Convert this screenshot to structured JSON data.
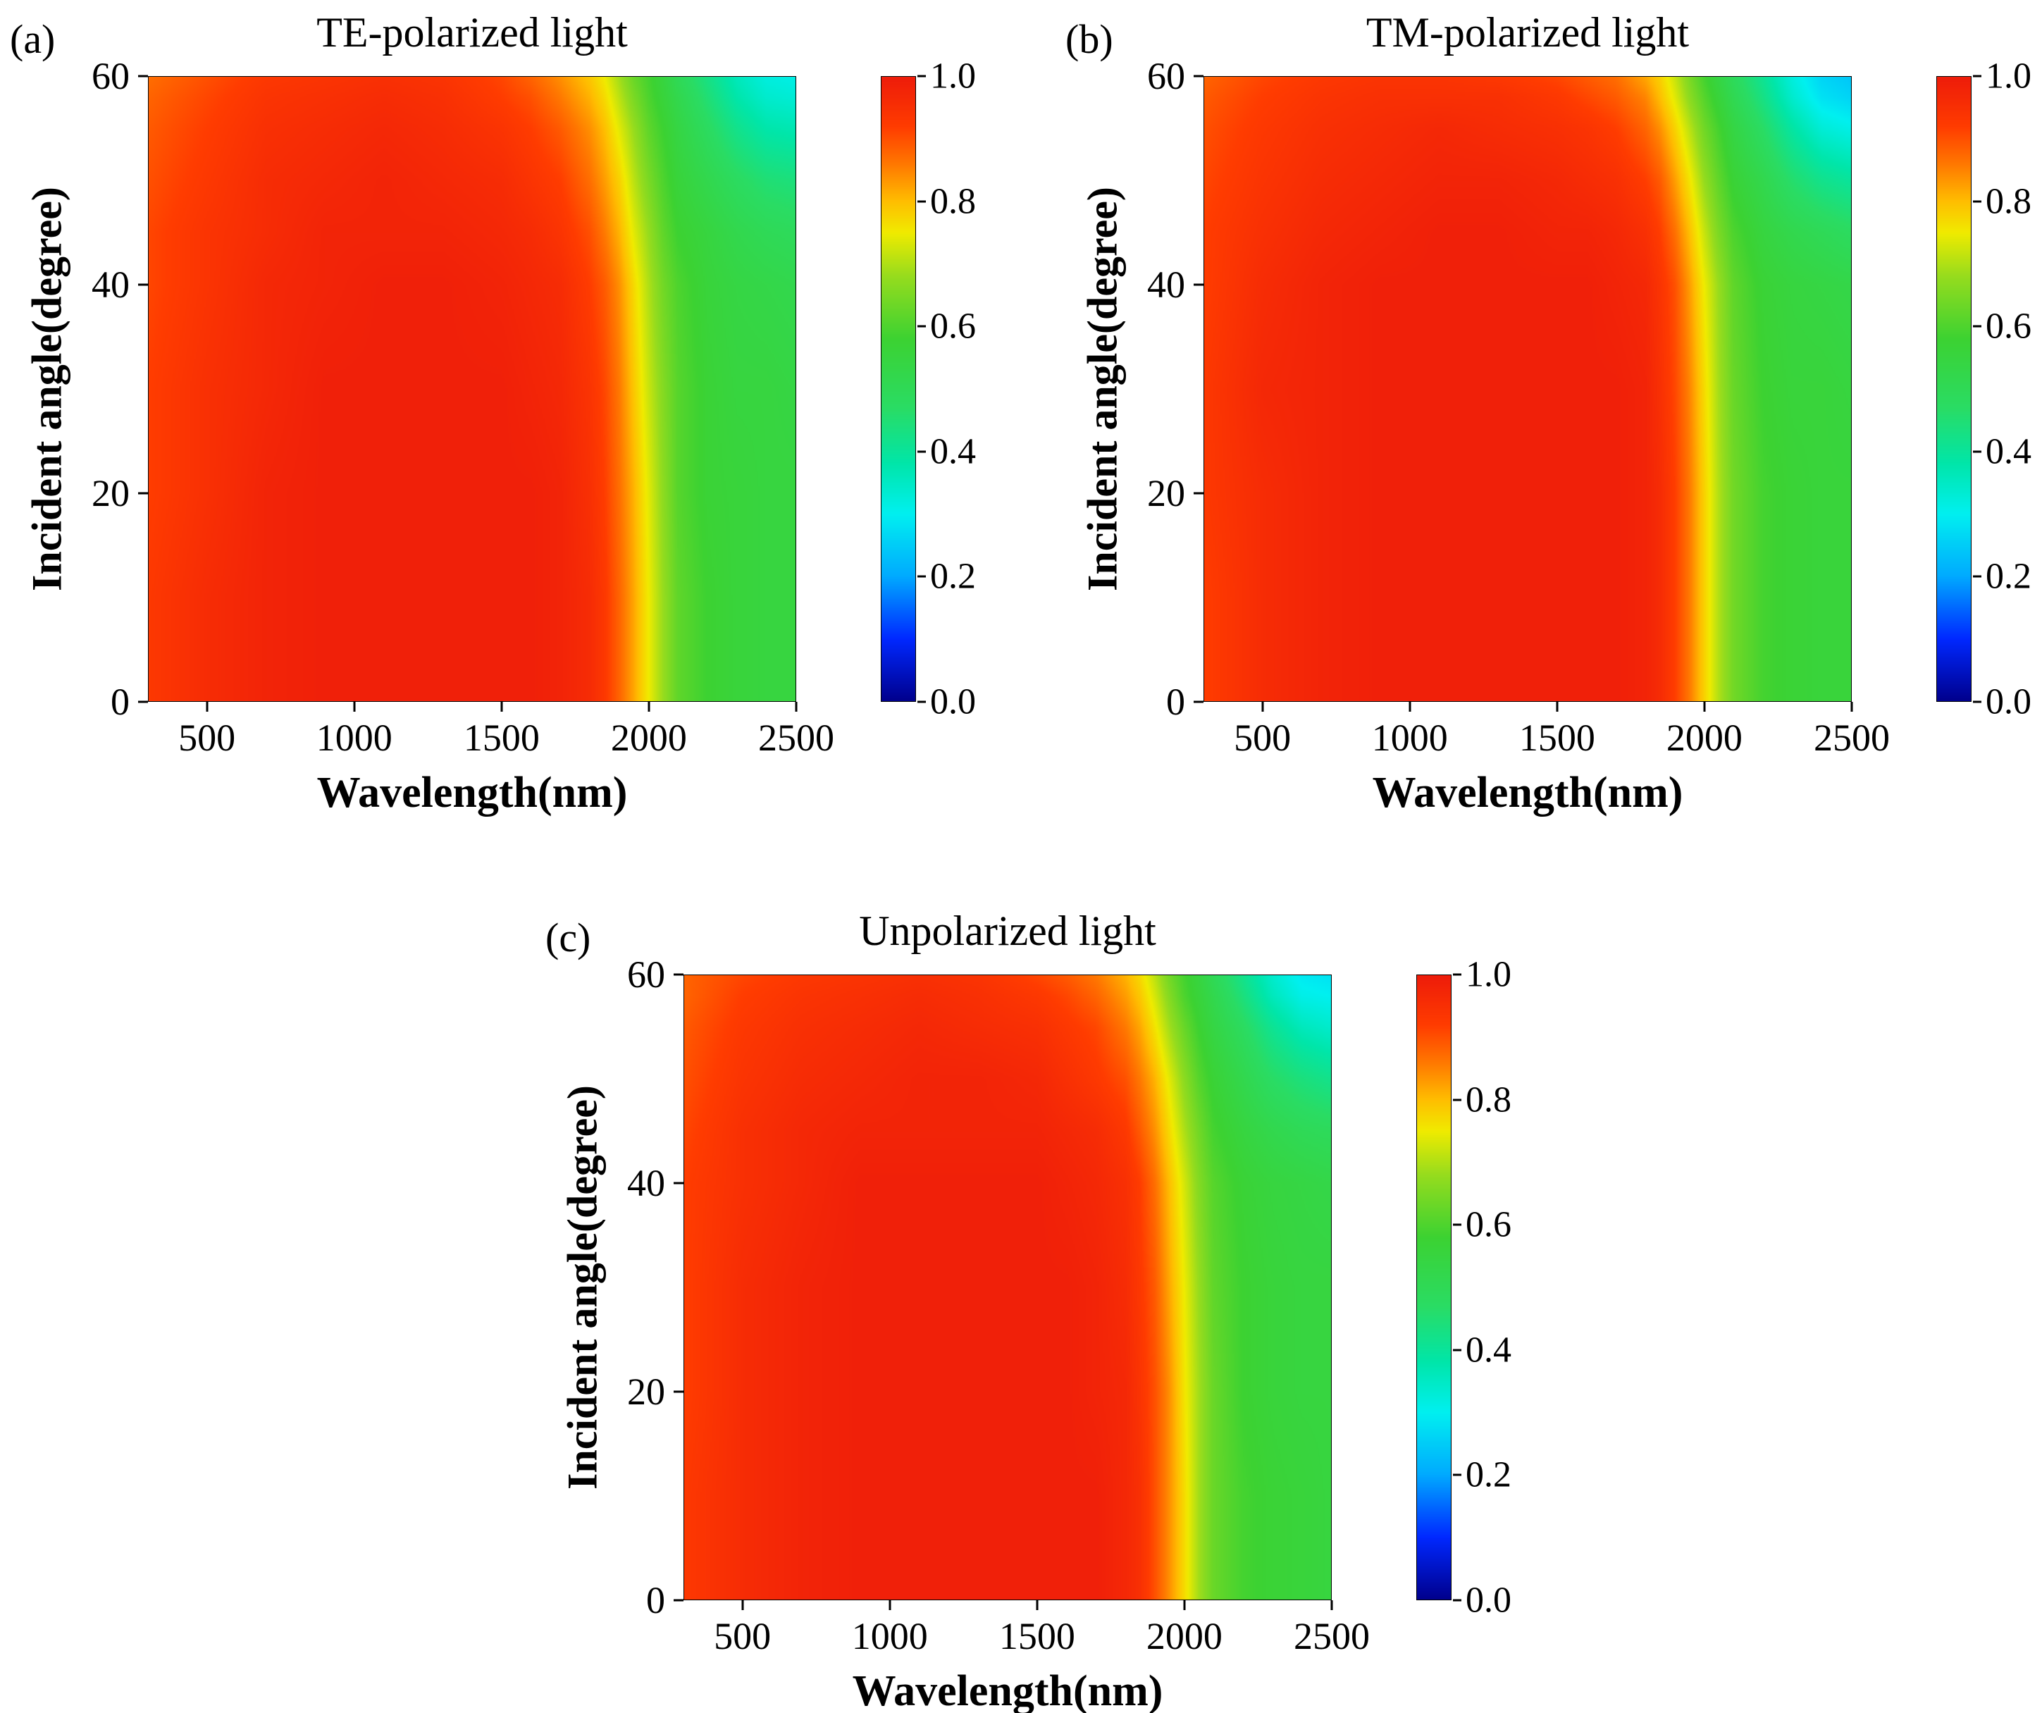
{
  "figure_background": "#ffffff",
  "colormap": {
    "name": "jet",
    "stops": [
      [
        0.0,
        "#00008C"
      ],
      [
        0.1,
        "#0028FF"
      ],
      [
        0.2,
        "#00AAFF"
      ],
      [
        0.3,
        "#00F0F0"
      ],
      [
        0.38,
        "#00E6AA"
      ],
      [
        0.47,
        "#2ADC64"
      ],
      [
        0.58,
        "#3CD232"
      ],
      [
        0.68,
        "#96DC1E"
      ],
      [
        0.75,
        "#F0EB00"
      ],
      [
        0.8,
        "#FFBE00"
      ],
      [
        0.86,
        "#FF7800"
      ],
      [
        0.92,
        "#FF3C00"
      ],
      [
        1.0,
        "#EE1C0A"
      ]
    ]
  },
  "chart_data": [
    {
      "type": "heatmap",
      "tag": "(a)",
      "title": "TE-polarized light",
      "xlabel": "Wavelength(nm)",
      "ylabel": "Incident angle(degree)",
      "xlim": [
        300,
        2500
      ],
      "ylim": [
        0,
        60
      ],
      "zlim": [
        0,
        1
      ],
      "x_ticks": [
        500,
        1000,
        1500,
        2000,
        2500
      ],
      "y_ticks": [
        0,
        20,
        40,
        60
      ],
      "colorbar_ticks": [
        "0.0",
        "0.2",
        "0.4",
        "0.6",
        "0.8",
        "1.0"
      ],
      "x": [
        300,
        500,
        700,
        900,
        1100,
        1300,
        1500,
        1600,
        1700,
        1800,
        1850,
        1900,
        1950,
        2000,
        2050,
        2100,
        2200,
        2300,
        2400,
        2500
      ],
      "y": [
        0,
        10,
        20,
        30,
        40,
        45,
        50,
        55,
        58,
        60
      ],
      "values": [
        [
          0.93,
          0.96,
          0.98,
          0.99,
          0.99,
          0.99,
          0.99,
          0.99,
          0.98,
          0.96,
          0.93,
          0.88,
          0.82,
          0.75,
          0.68,
          0.62,
          0.58,
          0.56,
          0.55,
          0.55
        ],
        [
          0.93,
          0.96,
          0.98,
          0.99,
          0.99,
          0.99,
          0.99,
          0.99,
          0.98,
          0.96,
          0.93,
          0.88,
          0.82,
          0.75,
          0.68,
          0.62,
          0.58,
          0.56,
          0.55,
          0.55
        ],
        [
          0.92,
          0.95,
          0.98,
          0.99,
          0.99,
          0.99,
          0.99,
          0.99,
          0.98,
          0.95,
          0.92,
          0.87,
          0.81,
          0.74,
          0.67,
          0.61,
          0.57,
          0.56,
          0.55,
          0.55
        ],
        [
          0.92,
          0.95,
          0.97,
          0.99,
          0.99,
          0.99,
          0.99,
          0.98,
          0.97,
          0.94,
          0.91,
          0.86,
          0.79,
          0.72,
          0.66,
          0.61,
          0.57,
          0.55,
          0.55,
          0.54
        ],
        [
          0.91,
          0.94,
          0.97,
          0.98,
          0.99,
          0.99,
          0.98,
          0.97,
          0.96,
          0.92,
          0.89,
          0.84,
          0.77,
          0.7,
          0.64,
          0.6,
          0.56,
          0.54,
          0.53,
          0.52
        ],
        [
          0.91,
          0.94,
          0.96,
          0.98,
          0.98,
          0.98,
          0.97,
          0.96,
          0.94,
          0.9,
          0.86,
          0.81,
          0.74,
          0.68,
          0.62,
          0.58,
          0.55,
          0.52,
          0.5,
          0.49
        ],
        [
          0.9,
          0.93,
          0.96,
          0.97,
          0.98,
          0.97,
          0.96,
          0.94,
          0.92,
          0.87,
          0.83,
          0.78,
          0.71,
          0.65,
          0.6,
          0.56,
          0.52,
          0.48,
          0.45,
          0.44
        ],
        [
          0.89,
          0.92,
          0.95,
          0.96,
          0.97,
          0.96,
          0.94,
          0.92,
          0.89,
          0.84,
          0.8,
          0.74,
          0.68,
          0.62,
          0.58,
          0.54,
          0.48,
          0.42,
          0.38,
          0.37
        ],
        [
          0.88,
          0.91,
          0.94,
          0.95,
          0.96,
          0.95,
          0.92,
          0.9,
          0.86,
          0.81,
          0.77,
          0.71,
          0.65,
          0.6,
          0.56,
          0.52,
          0.45,
          0.38,
          0.34,
          0.33
        ],
        [
          0.87,
          0.9,
          0.93,
          0.94,
          0.95,
          0.94,
          0.91,
          0.88,
          0.84,
          0.79,
          0.75,
          0.69,
          0.63,
          0.59,
          0.55,
          0.5,
          0.43,
          0.36,
          0.32,
          0.31
        ]
      ]
    },
    {
      "type": "heatmap",
      "tag": "(b)",
      "title": "TM-polarized light",
      "xlabel": "Wavelength(nm)",
      "ylabel": "Incident angle(degree)",
      "xlim": [
        300,
        2500
      ],
      "ylim": [
        0,
        60
      ],
      "zlim": [
        0,
        1
      ],
      "x_ticks": [
        500,
        1000,
        1500,
        2000,
        2500
      ],
      "y_ticks": [
        0,
        20,
        40,
        60
      ],
      "colorbar_ticks": [
        "0.0",
        "0.2",
        "0.4",
        "0.6",
        "0.8",
        "1.0"
      ],
      "x": [
        300,
        500,
        700,
        900,
        1100,
        1300,
        1500,
        1600,
        1700,
        1800,
        1850,
        1900,
        1950,
        2000,
        2050,
        2100,
        2200,
        2300,
        2400,
        2500
      ],
      "y": [
        0,
        10,
        20,
        30,
        40,
        45,
        50,
        55,
        58,
        60
      ],
      "values": [
        [
          0.92,
          0.96,
          0.98,
          0.99,
          0.99,
          0.99,
          0.99,
          0.99,
          0.99,
          0.98,
          0.96,
          0.92,
          0.86,
          0.78,
          0.7,
          0.64,
          0.59,
          0.57,
          0.56,
          0.56
        ],
        [
          0.92,
          0.96,
          0.98,
          0.99,
          0.99,
          0.99,
          0.99,
          0.99,
          0.99,
          0.98,
          0.96,
          0.92,
          0.86,
          0.78,
          0.7,
          0.64,
          0.59,
          0.57,
          0.56,
          0.56
        ],
        [
          0.93,
          0.96,
          0.98,
          0.99,
          0.99,
          0.99,
          0.99,
          0.99,
          0.99,
          0.98,
          0.96,
          0.92,
          0.86,
          0.78,
          0.7,
          0.64,
          0.59,
          0.57,
          0.56,
          0.56
        ],
        [
          0.93,
          0.97,
          0.98,
          0.99,
          0.99,
          0.99,
          0.99,
          0.99,
          0.99,
          0.98,
          0.95,
          0.91,
          0.85,
          0.77,
          0.69,
          0.63,
          0.58,
          0.56,
          0.56,
          0.55
        ],
        [
          0.92,
          0.96,
          0.98,
          0.99,
          0.99,
          0.99,
          0.99,
          0.99,
          0.98,
          0.97,
          0.94,
          0.9,
          0.83,
          0.75,
          0.68,
          0.62,
          0.57,
          0.55,
          0.54,
          0.53
        ],
        [
          0.92,
          0.95,
          0.97,
          0.98,
          0.99,
          0.99,
          0.98,
          0.98,
          0.97,
          0.95,
          0.92,
          0.87,
          0.8,
          0.72,
          0.65,
          0.6,
          0.55,
          0.52,
          0.5,
          0.48
        ],
        [
          0.91,
          0.94,
          0.96,
          0.97,
          0.98,
          0.98,
          0.97,
          0.96,
          0.95,
          0.92,
          0.89,
          0.83,
          0.76,
          0.68,
          0.62,
          0.57,
          0.52,
          0.46,
          0.42,
          0.4
        ],
        [
          0.9,
          0.93,
          0.95,
          0.96,
          0.97,
          0.96,
          0.95,
          0.94,
          0.92,
          0.88,
          0.84,
          0.78,
          0.71,
          0.64,
          0.59,
          0.54,
          0.47,
          0.39,
          0.33,
          0.31
        ],
        [
          0.89,
          0.92,
          0.94,
          0.95,
          0.95,
          0.95,
          0.93,
          0.91,
          0.89,
          0.85,
          0.8,
          0.74,
          0.67,
          0.61,
          0.56,
          0.51,
          0.43,
          0.34,
          0.28,
          0.26
        ],
        [
          0.88,
          0.91,
          0.93,
          0.94,
          0.94,
          0.93,
          0.91,
          0.89,
          0.87,
          0.82,
          0.78,
          0.72,
          0.65,
          0.59,
          0.54,
          0.49,
          0.41,
          0.32,
          0.26,
          0.24
        ]
      ]
    },
    {
      "type": "heatmap",
      "tag": "(c)",
      "title": "Unpolarized light",
      "xlabel": "Wavelength(nm)",
      "ylabel": "Incident angle(degree)",
      "xlim": [
        300,
        2500
      ],
      "ylim": [
        0,
        60
      ],
      "zlim": [
        0,
        1
      ],
      "x_ticks": [
        500,
        1000,
        1500,
        2000,
        2500
      ],
      "y_ticks": [
        0,
        20,
        40,
        60
      ],
      "colorbar_ticks": [
        "0.0",
        "0.2",
        "0.4",
        "0.6",
        "0.8",
        "1.0"
      ],
      "x": [
        300,
        500,
        700,
        900,
        1100,
        1300,
        1500,
        1600,
        1700,
        1800,
        1850,
        1900,
        1950,
        2000,
        2050,
        2100,
        2200,
        2300,
        2400,
        2500
      ],
      "y": [
        0,
        10,
        20,
        30,
        40,
        45,
        50,
        55,
        58,
        60
      ],
      "values": [
        [
          0.93,
          0.96,
          0.98,
          0.99,
          0.99,
          0.99,
          0.99,
          0.99,
          0.99,
          0.97,
          0.95,
          0.9,
          0.84,
          0.77,
          0.69,
          0.63,
          0.59,
          0.57,
          0.56,
          0.55
        ],
        [
          0.93,
          0.96,
          0.98,
          0.99,
          0.99,
          0.99,
          0.99,
          0.99,
          0.99,
          0.97,
          0.95,
          0.9,
          0.84,
          0.77,
          0.69,
          0.63,
          0.59,
          0.57,
          0.56,
          0.55
        ],
        [
          0.92,
          0.96,
          0.98,
          0.99,
          0.99,
          0.99,
          0.99,
          0.99,
          0.98,
          0.97,
          0.94,
          0.9,
          0.84,
          0.76,
          0.69,
          0.63,
          0.58,
          0.56,
          0.55,
          0.55
        ],
        [
          0.92,
          0.96,
          0.98,
          0.99,
          0.99,
          0.99,
          0.99,
          0.99,
          0.98,
          0.96,
          0.93,
          0.89,
          0.82,
          0.75,
          0.68,
          0.62,
          0.58,
          0.56,
          0.55,
          0.55
        ],
        [
          0.92,
          0.95,
          0.97,
          0.99,
          0.99,
          0.99,
          0.99,
          0.98,
          0.97,
          0.95,
          0.92,
          0.87,
          0.8,
          0.73,
          0.66,
          0.61,
          0.57,
          0.55,
          0.54,
          0.53
        ],
        [
          0.91,
          0.95,
          0.97,
          0.98,
          0.98,
          0.98,
          0.98,
          0.97,
          0.96,
          0.93,
          0.89,
          0.84,
          0.77,
          0.7,
          0.64,
          0.59,
          0.55,
          0.52,
          0.5,
          0.49
        ],
        [
          0.9,
          0.94,
          0.96,
          0.97,
          0.98,
          0.98,
          0.97,
          0.95,
          0.93,
          0.9,
          0.86,
          0.81,
          0.74,
          0.67,
          0.61,
          0.57,
          0.52,
          0.47,
          0.44,
          0.42
        ],
        [
          0.89,
          0.93,
          0.95,
          0.96,
          0.97,
          0.96,
          0.95,
          0.93,
          0.91,
          0.86,
          0.82,
          0.76,
          0.69,
          0.63,
          0.58,
          0.54,
          0.48,
          0.41,
          0.36,
          0.34
        ],
        [
          0.88,
          0.92,
          0.94,
          0.95,
          0.96,
          0.95,
          0.93,
          0.91,
          0.88,
          0.83,
          0.79,
          0.73,
          0.66,
          0.6,
          0.56,
          0.52,
          0.44,
          0.36,
          0.31,
          0.3
        ],
        [
          0.88,
          0.91,
          0.93,
          0.94,
          0.95,
          0.94,
          0.91,
          0.89,
          0.86,
          0.81,
          0.77,
          0.71,
          0.64,
          0.59,
          0.55,
          0.5,
          0.42,
          0.34,
          0.29,
          0.28
        ]
      ]
    }
  ]
}
